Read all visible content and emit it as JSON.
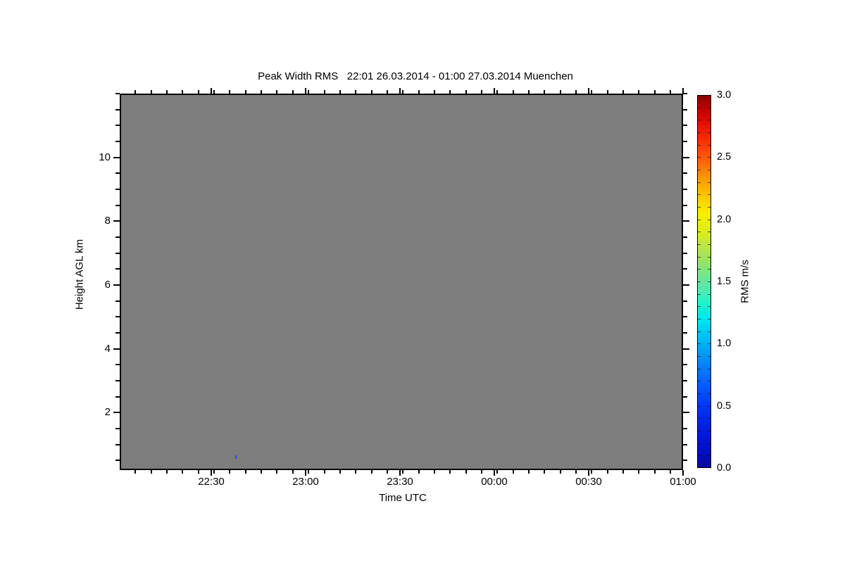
{
  "figure": {
    "background_color": "#ffffff"
  },
  "chart_data": {
    "type": "heatmap",
    "title": "Peak Width RMS   22:01 26.03.2014 - 01:00 27.03.2014 Muenchen",
    "xlabel": "Time UTC",
    "ylabel": "Height AGL km",
    "grid": false,
    "no_data_color": "#7d7d7d",
    "x_axis": {
      "start_label": "22:01",
      "end_label": "01:00",
      "total_minutes": 179,
      "minor_step_minutes": 5,
      "major_ticks": [
        {
          "minute": 29,
          "label": "22:30"
        },
        {
          "minute": 59,
          "label": "23:00"
        },
        {
          "minute": 89,
          "label": "23:30"
        },
        {
          "minute": 119,
          "label": "00:00"
        },
        {
          "minute": 149,
          "label": "00:30"
        },
        {
          "minute": 179,
          "label": "01:00"
        }
      ]
    },
    "y_axis": {
      "min": 0.2,
      "max": 12.0,
      "minor_step": 0.5,
      "major_ticks": [
        {
          "value": 2,
          "label": "2"
        },
        {
          "value": 4,
          "label": "4"
        },
        {
          "value": 6,
          "label": "6"
        },
        {
          "value": 8,
          "label": "8"
        },
        {
          "value": 10,
          "label": "10"
        }
      ]
    },
    "colorbar": {
      "label": "RMS m/s",
      "min": 0.0,
      "max": 3.0,
      "minor_step": 0.1,
      "major_ticks": [
        {
          "value": 3.0,
          "label": "3.0"
        },
        {
          "value": 2.5,
          "label": "2.5"
        },
        {
          "value": 2.0,
          "label": "2.0"
        },
        {
          "value": 1.5,
          "label": "1.5"
        },
        {
          "value": 1.0,
          "label": "1.0"
        },
        {
          "value": 0.5,
          "label": "0.5"
        },
        {
          "value": 0.0,
          "label": "0.0"
        }
      ],
      "gradient": [
        {
          "value": 0.0,
          "color": "#0a0aa0"
        },
        {
          "value": 0.15,
          "color": "#0010c8"
        },
        {
          "value": 0.3,
          "color": "#001ede"
        },
        {
          "value": 0.5,
          "color": "#0038f0"
        },
        {
          "value": 0.7,
          "color": "#0066ff"
        },
        {
          "value": 0.9,
          "color": "#0096ff"
        },
        {
          "value": 1.05,
          "color": "#00beff"
        },
        {
          "value": 1.2,
          "color": "#00e6ee"
        },
        {
          "value": 1.35,
          "color": "#2df2c4"
        },
        {
          "value": 1.5,
          "color": "#62e89e"
        },
        {
          "value": 1.7,
          "color": "#a4e356"
        },
        {
          "value": 1.9,
          "color": "#dcec1e"
        },
        {
          "value": 2.05,
          "color": "#f8ee00"
        },
        {
          "value": 2.2,
          "color": "#ffc300"
        },
        {
          "value": 2.35,
          "color": "#ff9300"
        },
        {
          "value": 2.5,
          "color": "#ff5a00"
        },
        {
          "value": 2.65,
          "color": "#f52d00"
        },
        {
          "value": 2.8,
          "color": "#dc0c00"
        },
        {
          "value": 2.9,
          "color": "#bb0000"
        },
        {
          "value": 3.0,
          "color": "#8e0000"
        }
      ]
    },
    "data_points": [
      {
        "time_utc": "22:38",
        "minute": 37,
        "height_km": 0.62,
        "rms_ms": 0.6,
        "color": "#2a4fd0"
      }
    ]
  }
}
